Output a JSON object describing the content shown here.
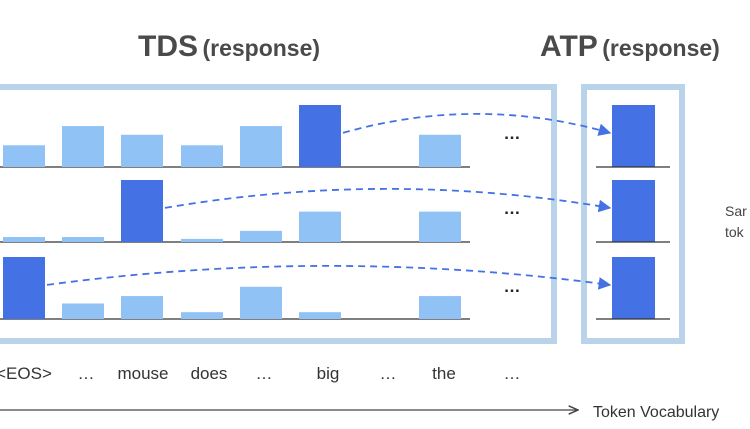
{
  "titles": {
    "tds_main": "TDS",
    "tds_sub": "(response)",
    "atp_main": "ATP",
    "atp_sub": "(response)"
  },
  "ellipsis": "…",
  "tokens": [
    "<EOS>",
    "…",
    "mouse",
    "does",
    "…",
    "big",
    "…",
    "the",
    "…"
  ],
  "axis_label": "Token Vocabulary",
  "side_text": [
    "Sar",
    "tok"
  ],
  "colors": {
    "highlight": "#4472e4",
    "light_bar": "#90c2f5",
    "frame": "#b8d3ea",
    "arrow": "#4472e4",
    "baseline": "#333333"
  },
  "rows": [
    {
      "bars": [
        0.35,
        0.66,
        0.52,
        0.35,
        0.66,
        1.0,
        null,
        0.52
      ],
      "highlight": 5
    },
    {
      "bars": [
        0.08,
        0.08,
        1.0,
        0.05,
        0.18,
        0.49,
        null,
        0.49
      ],
      "highlight": 2
    },
    {
      "bars": [
        1.0,
        0.25,
        0.37,
        0.11,
        0.52,
        0.11,
        null,
        0.37
      ],
      "highlight": 0
    }
  ]
}
